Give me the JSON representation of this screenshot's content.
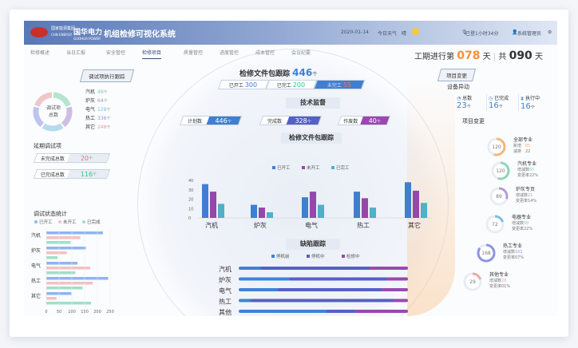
{
  "header": {
    "brand_small": "国家能源集团",
    "brand_small_en": "CHN ENERGY",
    "brand": "国华电力",
    "brand_en": "GUOHUA POWER",
    "title": "机组检修可视化系统",
    "date": "2020-01-14",
    "weather_label": "今日天气",
    "weather": "晴",
    "duration": "已登1小时34分",
    "user": "系统管理员"
  },
  "nav": {
    "tabs": [
      "检修概述",
      "当日汇报",
      "安全管控",
      "检修项目",
      "质量管控",
      "进度管控",
      "成本管控",
      "会议纪要"
    ],
    "active": 3
  },
  "period": {
    "prefix": "工期进行第",
    "current": "078",
    "unit": "天",
    "total_prefix": "共",
    "total": "090",
    "total_unit": "天"
  },
  "left": {
    "title": "调试项执行跟踪",
    "donut_label": "调试项总数",
    "items": [
      {
        "name": "汽机",
        "value": "48",
        "unit": "个",
        "color": "#7ccfa8"
      },
      {
        "name": "炉灰",
        "value": "64",
        "unit": "个",
        "color": "#a78bc9"
      },
      {
        "name": "电气",
        "value": "128",
        "unit": "个",
        "color": "#7cc0dc"
      },
      {
        "name": "热工",
        "value": "336",
        "unit": "个",
        "color": "#8b95e0"
      },
      {
        "name": "其它",
        "value": "248",
        "unit": "个",
        "color": "#e89a9a"
      }
    ],
    "delay_title": "延期调试项",
    "delay": [
      {
        "label": "未完成总数",
        "value": "20",
        "unit": "个",
        "color": "#f07070"
      },
      {
        "label": "已完成总数",
        "value": "116",
        "unit": "个",
        "color": "#2fc48a"
      }
    ],
    "stat_title": "调试状态统计"
  },
  "chart_data": [
    {
      "type": "bar",
      "orientation": "horizontal",
      "categories": [
        "汽机",
        "炉灰",
        "电气",
        "热工",
        "其它"
      ],
      "series": [
        {
          "name": "已开工",
          "color": "#8fb4f0",
          "values": [
            222,
            155,
            122,
            242,
            98
          ]
        },
        {
          "name": "未开工",
          "color": "#f5c0c0",
          "values": [
            133,
            80,
            172,
            182,
            40
          ]
        },
        {
          "name": "已完成",
          "color": "#9fe0c6",
          "values": [
            95,
            44,
            113,
            142,
            175
          ]
        }
      ],
      "xlim": [
        0,
        250
      ],
      "xticks": [
        0,
        50,
        100,
        150,
        200,
        250
      ]
    },
    {
      "type": "bar",
      "title": "检修文件包跟踪",
      "categories": [
        "汽机",
        "炉灰",
        "电气",
        "热工",
        "其它"
      ],
      "series": [
        {
          "name": "已开工",
          "color": "#3f7fd0",
          "values": [
            36,
            14,
            22,
            28,
            38
          ]
        },
        {
          "name": "未开工",
          "color": "#9747a8",
          "values": [
            28,
            11,
            28,
            21,
            29
          ]
        },
        {
          "name": "已完工",
          "color": "#4fb0c8",
          "values": [
            15,
            6,
            14,
            11,
            16
          ]
        }
      ],
      "ylim": [
        0,
        40
      ],
      "yticks": [
        0,
        10,
        20,
        30,
        40
      ]
    },
    {
      "type": "bar",
      "stacked": true,
      "orientation": "horizontal",
      "title": "缺陷跟踪",
      "categories": [
        "汽机",
        "炉灰",
        "电气",
        "热工",
        "其他"
      ],
      "series": [
        {
          "name": "停机前",
          "color": "#3d84d6",
          "values": [
            13,
            30,
            23,
            7,
            52
          ]
        },
        {
          "name": "停机中",
          "color": "#5560c8",
          "values": [
            65,
            58,
            62,
            85,
            17
          ]
        },
        {
          "name": "检修中",
          "color": "#9a48b0",
          "values": [
            22,
            12,
            15,
            8,
            31
          ]
        }
      ]
    }
  ],
  "center": {
    "pkg_title": "检修文件包跟踪",
    "pkg_total": "446",
    "unit": "个",
    "pkg_stats": [
      {
        "label": "已开工",
        "value": "300",
        "color": "#3f7fd0"
      },
      {
        "label": "已完工",
        "value": "200",
        "color": "#2fc48a"
      },
      {
        "label": "未完工",
        "value": "55",
        "color": "#f07070"
      }
    ],
    "tech_title": "技术监督",
    "tech": [
      {
        "label": "计划数",
        "value": "446",
        "color": "#3f7fd0"
      },
      {
        "label": "完成数",
        "value": "328",
        "color": "#5560c8"
      },
      {
        "label": "作废数",
        "value": "40",
        "color": "#9a48b0"
      }
    ]
  },
  "right": {
    "title": "项目变更",
    "equip_title": "设备异动",
    "equip": [
      {
        "label": "总数",
        "value": "23",
        "unit": "个"
      },
      {
        "label": "已完成",
        "value": "16",
        "unit": "个"
      },
      {
        "label": "执行中",
        "value": "16",
        "unit": "个"
      }
    ],
    "change_title": "项目变更",
    "changes": [
      {
        "name": "全部专业",
        "total": "120",
        "l1": "新增",
        "v1": "85",
        "l2": "减排",
        "v2": "22",
        "color": "#f5b878",
        "pct": 0.55
      },
      {
        "name": "汽机专业",
        "total": "120",
        "l1": "增减数",
        "v1": "85",
        "l2": "变更率",
        "v2": "22%",
        "color": "#8fd6b8",
        "pct": 0.55
      },
      {
        "name": "炉灰专页",
        "total": "89",
        "l1": "增减数",
        "v1": "21",
        "l2": "变更率",
        "v2": "14%",
        "color": "#b69ad6",
        "pct": 0.3
      },
      {
        "name": "电器专业",
        "total": "72",
        "l1": "增减数",
        "v1": "50",
        "l2": "变更率",
        "v2": "22%",
        "color": "#7cc0dc",
        "pct": 0.2
      },
      {
        "name": "热工专业",
        "total": "168",
        "l1": "增减数",
        "v1": "161",
        "l2": "变更率",
        "v2": "07%",
        "color": "#8b95e0",
        "pct": 0.85
      },
      {
        "name": "其他专业",
        "total": "29",
        "l1": "增减数",
        "v1": "28",
        "l2": "变更率",
        "v2": "01%",
        "color": "#f0a8a8",
        "pct": 0.2
      }
    ]
  }
}
